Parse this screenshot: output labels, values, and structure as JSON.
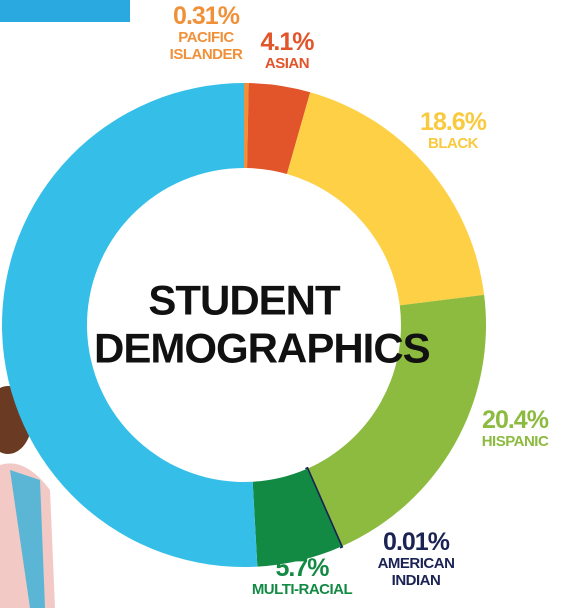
{
  "chart_data": {
    "type": "donut",
    "title": "STUDENT DEMOGRAPHICS",
    "categories": [
      "PACIFIC ISLANDER",
      "ASIAN",
      "BLACK",
      "HISPANIC",
      "AMERICAN INDIAN",
      "MULTI-RACIAL",
      null
    ],
    "values": [
      0.31,
      4.1,
      18.6,
      20.4,
      0.01,
      5.7,
      50.88
    ],
    "value_labels": [
      "0.31%",
      "4.1%",
      "18.6%",
      "20.4%",
      "0.01%",
      "5.7%",
      null
    ],
    "colors": [
      "#f0913a",
      "#e2542a",
      "#fdd046",
      "#8cbb3f",
      "#1a2353",
      "#138a44",
      "#35bfe8"
    ]
  }
}
